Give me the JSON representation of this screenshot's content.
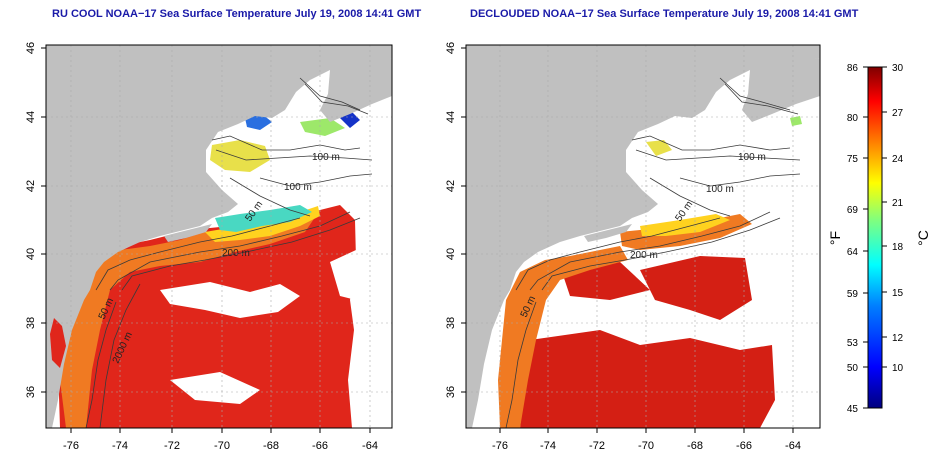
{
  "titles": {
    "left": "RU COOL NOAA−17 Sea Surface Temperature July 19, 2008 14:41 GMT",
    "right": "DECLOUDED NOAA−17 Sea Surface Temperature July 19, 2008 14:41 GMT"
  },
  "axes": {
    "lon_ticks": [
      "-76",
      "-74",
      "-72",
      "-70",
      "-68",
      "-66",
      "-64"
    ],
    "lat_ticks": [
      "46",
      "44",
      "42",
      "40",
      "38",
      "36"
    ]
  },
  "contour_labels": {
    "left": [
      "100 m",
      "100 m",
      "50 m",
      "200 m",
      "50 m",
      "2000 m"
    ],
    "right": [
      "100 m",
      "100 m",
      "50 m",
      "200 m",
      "50 m"
    ]
  },
  "colorbar": {
    "f_ticks": [
      "86",
      "80",
      "75",
      "69",
      "64",
      "59",
      "53",
      "50",
      "45"
    ],
    "c_ticks": [
      "30",
      "27",
      "24",
      "21",
      "18",
      "15",
      "12",
      "10"
    ],
    "f_label": "°F",
    "c_label": "°C",
    "colors": [
      "#00007f",
      "#0000ff",
      "#007fff",
      "#00ffff",
      "#7fff7f",
      "#ffff00",
      "#ff7f00",
      "#ff0000",
      "#7f0000"
    ]
  },
  "colors": {
    "land": "#c0c0c0",
    "ocean_no_data": "#ffffff",
    "title": "#1a1aa8",
    "contour": "#3a3a3a"
  }
}
